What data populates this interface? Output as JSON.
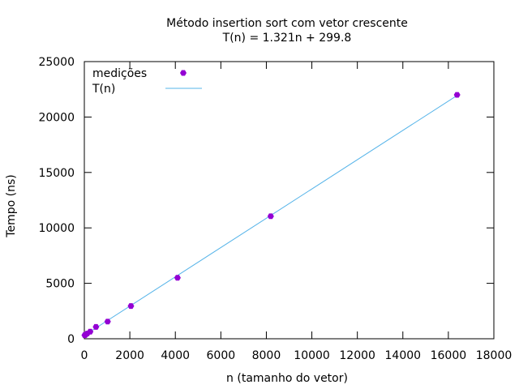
{
  "chart_data": {
    "type": "scatter",
    "title": "Método insertion sort com vetor crescente",
    "subtitle": "T(n) = 1.321n + 299.8",
    "xlabel": "n (tamanho do vetor)",
    "ylabel": "Tempo (ns)",
    "xlim": [
      0,
      18000
    ],
    "ylim": [
      0,
      25000
    ],
    "x_ticks": [
      0,
      2000,
      4000,
      6000,
      8000,
      10000,
      12000,
      14000,
      16000,
      18000
    ],
    "y_ticks": [
      0,
      5000,
      10000,
      15000,
      20000,
      25000
    ],
    "x_tick_labels": [
      "0",
      "2000",
      "4000",
      "6000",
      "8000",
      "10000",
      "12000",
      "14000",
      "16000",
      "18000"
    ],
    "y_tick_labels": [
      "0",
      "5000",
      "10000",
      "15000",
      "20000",
      "25000"
    ],
    "grid": false,
    "legend_position": "top-left",
    "series": [
      {
        "name": "medições",
        "kind": "points",
        "color": "#9400d3",
        "x": [
          16,
          32,
          64,
          128,
          256,
          512,
          1024,
          2048,
          4096,
          8192,
          16384
        ],
        "y": [
          320,
          340,
          380,
          470,
          640,
          1070,
          1550,
          2950,
          5500,
          11050,
          22000
        ]
      },
      {
        "name": "T(n)",
        "kind": "line",
        "color": "#56b4e9",
        "slope": 1.321,
        "intercept": 299.8,
        "x": [
          0,
          16384
        ],
        "y": [
          299.8,
          21943.1
        ]
      }
    ]
  }
}
